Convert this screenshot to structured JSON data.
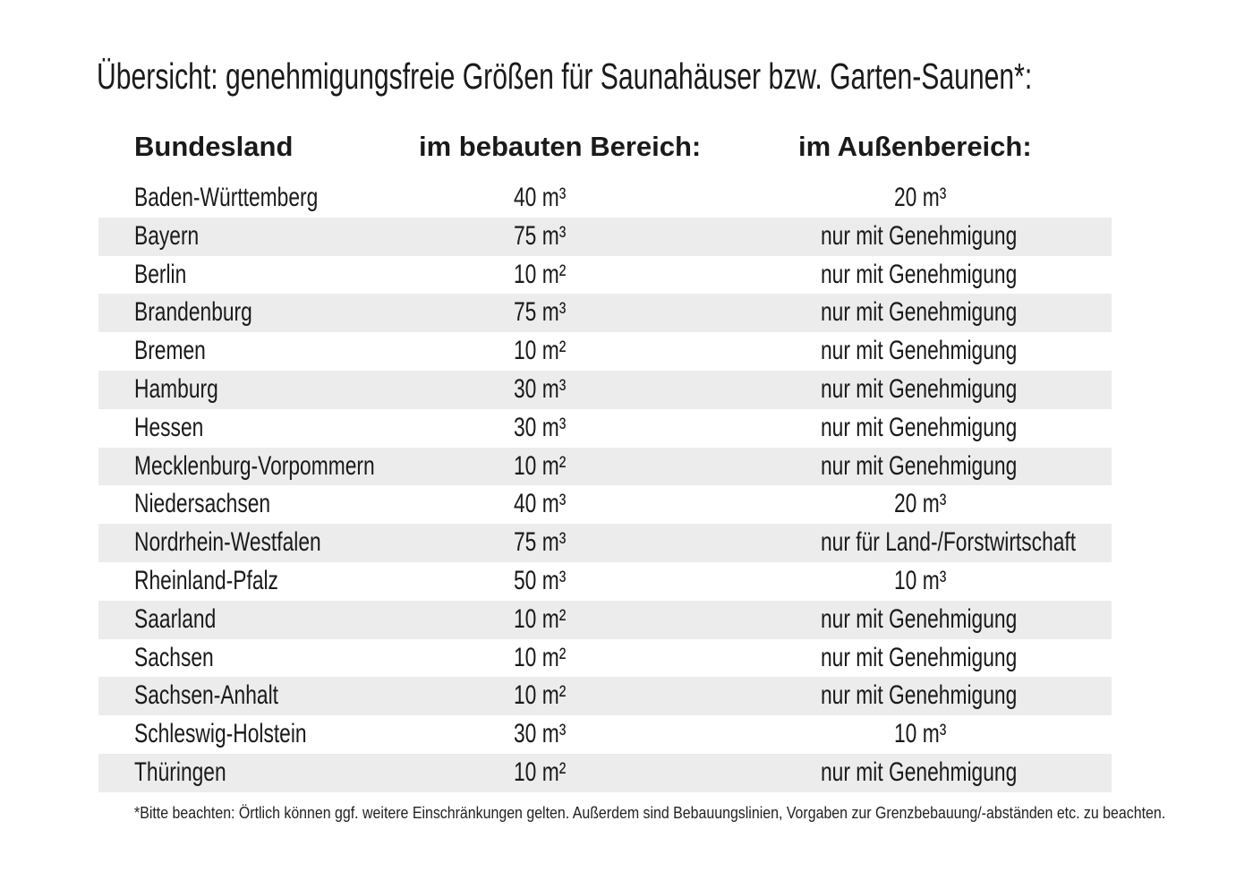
{
  "title": "Übersicht: genehmigungsfreie Größen für Saunahäuser bzw. Garten-Saunen*:",
  "table": {
    "headers": [
      "Bundesland",
      "im bebauten Bereich:",
      "im Außenbereich:"
    ],
    "rows": [
      [
        "Baden-Württemberg",
        "40 m³",
        "20 m³"
      ],
      [
        "Bayern",
        "75 m³",
        "nur mit Genehmigung"
      ],
      [
        "Berlin",
        "10 m²",
        "nur mit Genehmigung"
      ],
      [
        "Brandenburg",
        "75 m³",
        "nur mit Genehmigung"
      ],
      [
        "Bremen",
        "10 m²",
        "nur mit Genehmigung"
      ],
      [
        "Hamburg",
        "30 m³",
        "nur mit Genehmigung"
      ],
      [
        "Hessen",
        "30 m³",
        "nur mit Genehmigung"
      ],
      [
        "Mecklenburg-Vorpommern",
        "10 m²",
        "nur mit Genehmigung"
      ],
      [
        "Niedersachsen",
        "40 m³",
        "20 m³"
      ],
      [
        "Nordrhein-Westfalen",
        "75 m³",
        "nur für Land-/Forstwirtschaft"
      ],
      [
        "Rheinland-Pfalz",
        "50 m³",
        "10 m³"
      ],
      [
        "Saarland",
        "10 m²",
        "nur mit Genehmigung"
      ],
      [
        "Sachsen",
        "10 m²",
        "nur mit Genehmigung"
      ],
      [
        "Sachsen-Anhalt",
        "10 m²",
        "nur mit Genehmigung"
      ],
      [
        "Schleswig-Holstein",
        "30 m³",
        "10 m³"
      ],
      [
        "Thüringen",
        "10 m²",
        "nur mit Genehmigung"
      ]
    ],
    "stripe_color": "#ececec"
  },
  "footnote": "*Bitte beachten: Örtlich können ggf. weitere Einschränkungen gelten. Außerdem sind Bebauungslinien, Vorgaben zur Grenzbebauung/-abständen etc. zu beachten."
}
